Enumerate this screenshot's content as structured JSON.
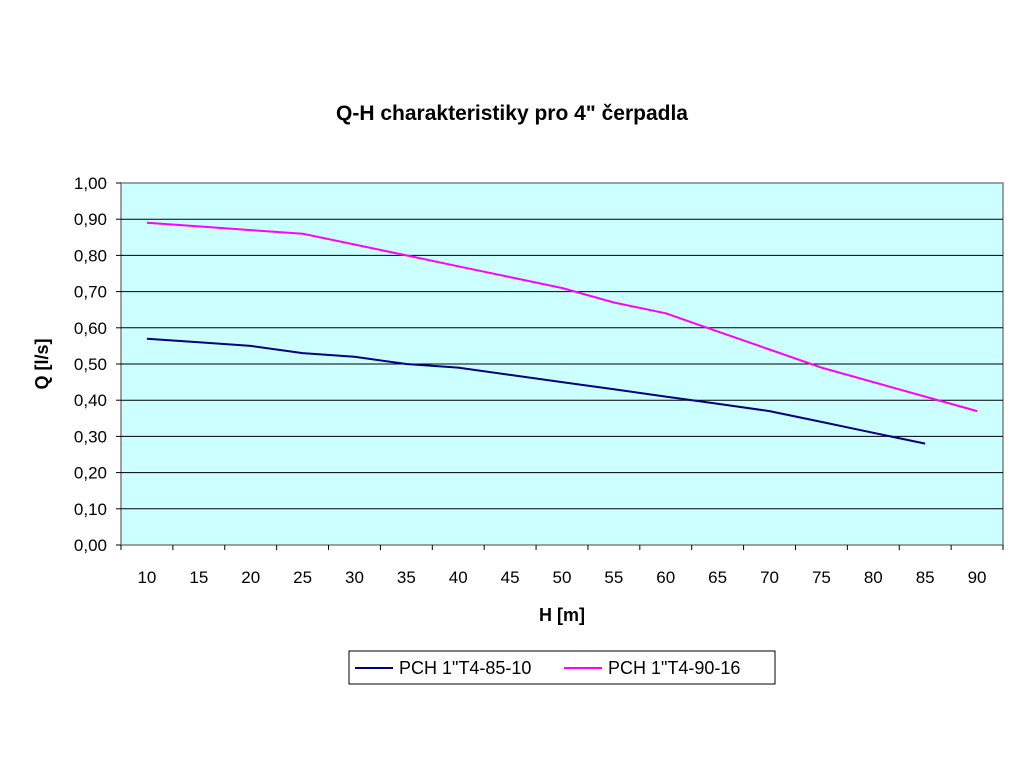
{
  "chart_data": {
    "type": "line",
    "title": "Q-H charakteristiky pro 4\" čerpadla",
    "xlabel": "H [m]",
    "ylabel": "Q [l/s]",
    "categories": [
      "10",
      "15",
      "20",
      "25",
      "30",
      "35",
      "40",
      "45",
      "50",
      "55",
      "60",
      "65",
      "70",
      "75",
      "80",
      "85",
      "90"
    ],
    "y_tick_labels": [
      "0,00",
      "0,10",
      "0,20",
      "0,30",
      "0,40",
      "0,50",
      "0,60",
      "0,70",
      "0,80",
      "0,90",
      "1,00"
    ],
    "ylim": [
      0,
      1.0
    ],
    "grid": "horizontal",
    "plot_background": "#ccffff",
    "legend_position": "bottom",
    "series": [
      {
        "name": "PCH 1\"T4-85-10",
        "color": "#000080",
        "values": [
          0.57,
          0.56,
          0.55,
          0.53,
          0.52,
          0.5,
          0.49,
          0.47,
          0.45,
          0.43,
          0.41,
          0.39,
          0.37,
          0.34,
          0.31,
          0.28,
          null
        ]
      },
      {
        "name": "PCH 1\"T4-90-16",
        "color": "#ff00ff",
        "values": [
          0.89,
          0.88,
          0.87,
          0.86,
          0.83,
          0.8,
          0.77,
          0.74,
          0.71,
          0.67,
          0.64,
          0.59,
          0.54,
          0.49,
          0.45,
          0.41,
          0.37
        ]
      }
    ]
  }
}
